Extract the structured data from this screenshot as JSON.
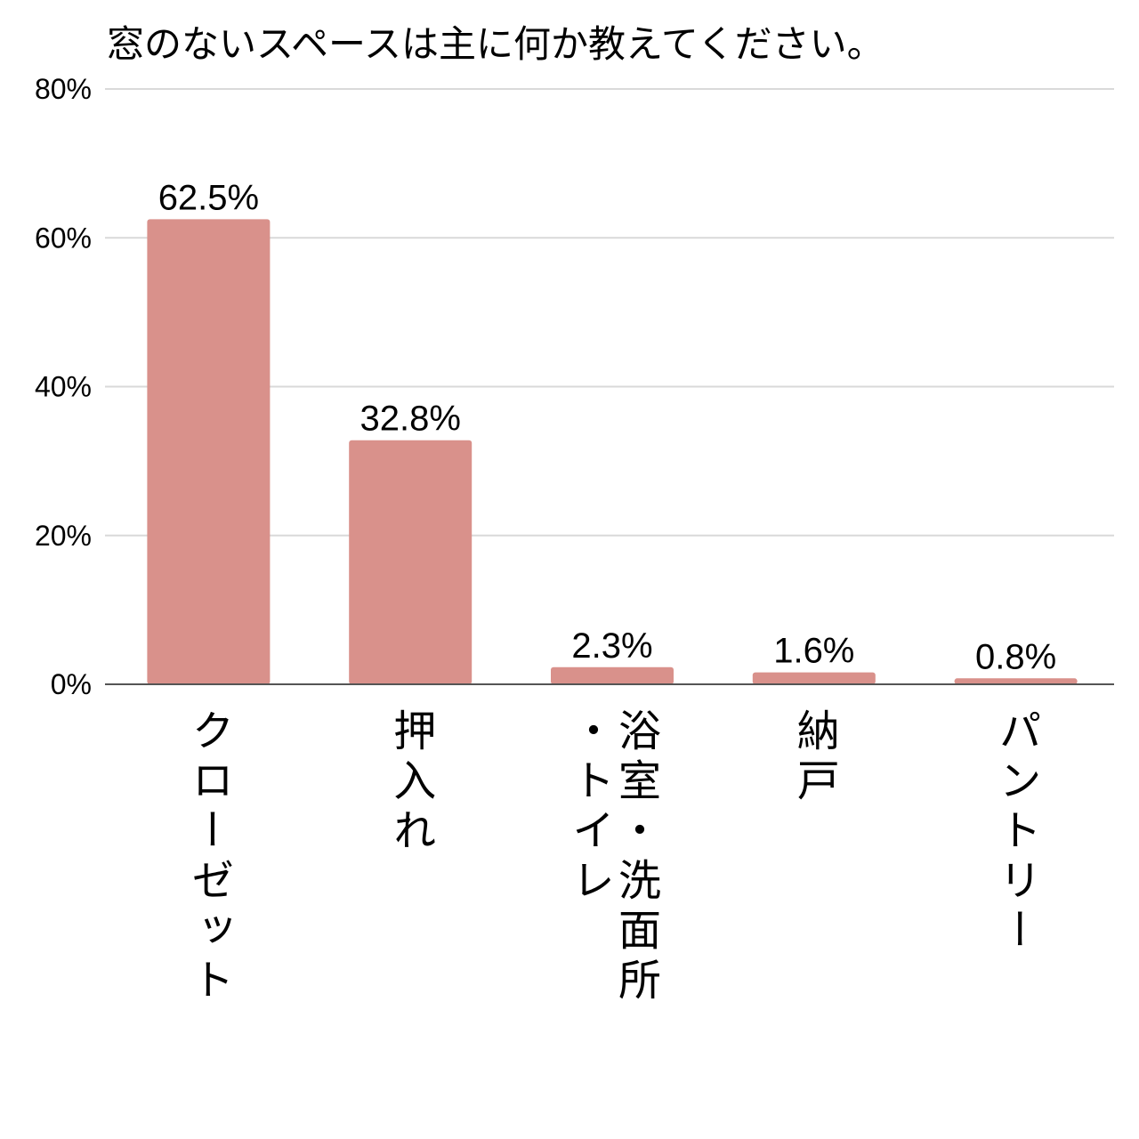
{
  "chart_data": {
    "type": "bar",
    "title": "窓のないスペースは主に何か教えてください。",
    "categories": [
      "クローゼット",
      "押入れ",
      "浴室・洗面所・トイレ",
      "納戸",
      "パントリー"
    ],
    "category_columns": [
      [
        "クローゼット"
      ],
      [
        "押入れ"
      ],
      [
        "・トイレ",
        "浴室・洗面所"
      ],
      [
        "納戸"
      ],
      [
        "パントリー"
      ]
    ],
    "values": [
      62.5,
      32.8,
      2.3,
      1.6,
      0.8
    ],
    "value_labels": [
      "62.5%",
      "32.8%",
      "2.3%",
      "1.6%",
      "0.8%"
    ],
    "y_ticks": [
      0,
      20,
      40,
      60,
      80
    ],
    "y_tick_labels": [
      "0%",
      "20%",
      "40%",
      "60%",
      "80%"
    ],
    "ylim": [
      0,
      80
    ],
    "grid": true,
    "bar_color": "#d9918b",
    "grid_color": "#d9d9d9",
    "axis_color": "#555555"
  }
}
